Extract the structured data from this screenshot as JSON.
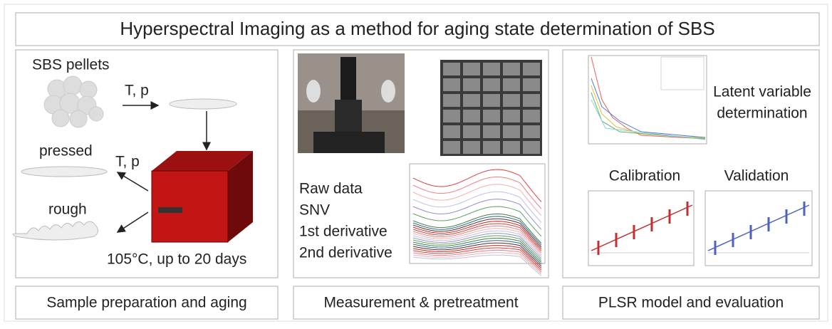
{
  "title": "Hyperspectral Imaging as a method for aging state determination of SBS",
  "panels": [
    {
      "caption": "Sample preparation and aging",
      "labels": {
        "pellets": "SBS pellets",
        "step1": "T, p",
        "pressed": "pressed",
        "step2": "T, p",
        "rough": "rough",
        "condition": "105°C, up to 20 days"
      }
    },
    {
      "caption": "Measurement & pretreatment",
      "pretreatments": [
        "Raw data",
        "SNV",
        "1st derivative",
        "2nd derivative"
      ]
    },
    {
      "caption": "PLSR model and evaluation",
      "latent": [
        "Latent variable",
        "determination"
      ],
      "calibration": "Calibration",
      "validation": "Validation"
    }
  ]
}
